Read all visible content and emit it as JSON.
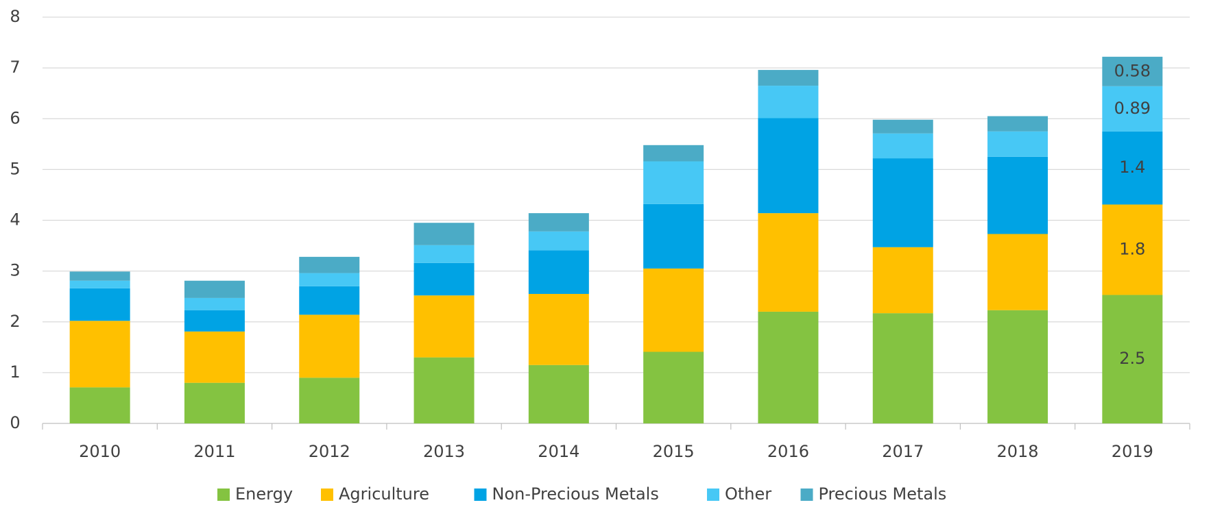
{
  "chart_data": {
    "type": "stacked_bar",
    "categories": [
      "2010",
      "2011",
      "2012",
      "2013",
      "2014",
      "2015",
      "2016",
      "2017",
      "2018",
      "2019"
    ],
    "series": [
      {
        "name": "Energy",
        "color": "#84c341",
        "values": [
          0.71,
          0.8,
          0.9,
          1.3,
          1.15,
          1.41,
          2.2,
          2.17,
          2.23,
          2.53
        ],
        "value_labels": [
          null,
          null,
          null,
          null,
          null,
          null,
          null,
          null,
          null,
          "2.5"
        ]
      },
      {
        "name": "Agriculture",
        "color": "#ffc000",
        "values": [
          1.31,
          1.01,
          1.24,
          1.22,
          1.4,
          1.64,
          1.94,
          1.3,
          1.5,
          1.78
        ],
        "value_labels": [
          null,
          null,
          null,
          null,
          null,
          null,
          null,
          null,
          null,
          "1.8"
        ]
      },
      {
        "name": "Non-Precious Metals",
        "color": "#00a3e4",
        "values": [
          0.64,
          0.42,
          0.56,
          0.64,
          0.86,
          1.27,
          1.87,
          1.75,
          1.52,
          1.44
        ],
        "value_labels": [
          null,
          null,
          null,
          null,
          null,
          null,
          null,
          null,
          null,
          "1.4"
        ]
      },
      {
        "name": "Other",
        "color": "#47c8f5",
        "values": [
          0.15,
          0.24,
          0.26,
          0.35,
          0.37,
          0.84,
          0.64,
          0.49,
          0.5,
          0.89
        ],
        "value_labels": [
          null,
          null,
          null,
          null,
          null,
          null,
          null,
          null,
          null,
          "0.89"
        ]
      },
      {
        "name": "Precious Metals",
        "color": "#4babc6",
        "values": [
          0.18,
          0.34,
          0.32,
          0.44,
          0.36,
          0.32,
          0.31,
          0.27,
          0.3,
          0.58
        ],
        "value_labels": [
          null,
          null,
          null,
          null,
          null,
          null,
          null,
          null,
          null,
          "0.58"
        ]
      }
    ],
    "ylim": [
      0,
      8
    ],
    "yticks": [
      0,
      1,
      2,
      3,
      4,
      5,
      6,
      7,
      8
    ],
    "grid": true,
    "legend": "bottom"
  }
}
